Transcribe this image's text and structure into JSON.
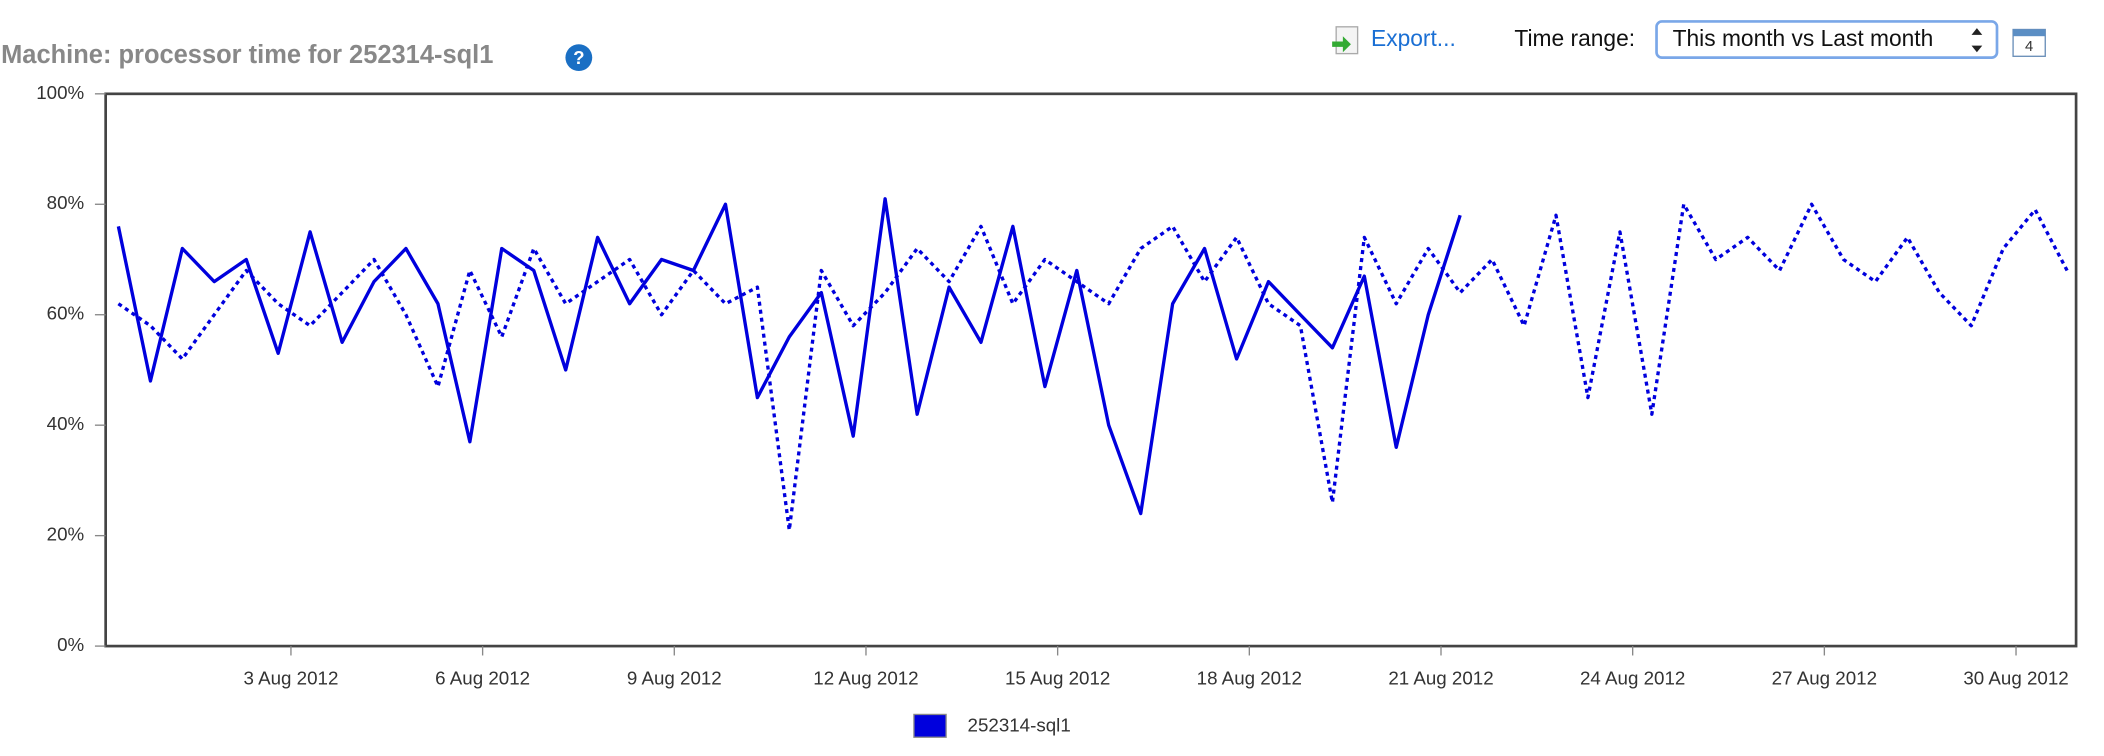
{
  "toolbar": {
    "export": "Export...",
    "time_range_label": "Time range:",
    "time_range_value": "This month vs Last month",
    "calendar_day": "4",
    "help": "?"
  },
  "chart_data": {
    "type": "line",
    "title": "Machine: processor time for 252314-sql1",
    "x": [
      0.3,
      0.8,
      1.3,
      1.8,
      2.3,
      2.8,
      3.3,
      3.8,
      4.3,
      4.8,
      5.3,
      5.8,
      6.3,
      6.8,
      7.3,
      7.8,
      8.3,
      8.8,
      9.3,
      9.8,
      10.3,
      10.8,
      11.3,
      11.8,
      12.3,
      12.8,
      13.3,
      13.8,
      14.3,
      14.8,
      15.3,
      15.8,
      16.3,
      16.8,
      17.3,
      17.8,
      18.3,
      18.8,
      19.3,
      19.8,
      20.3,
      20.8,
      21.3,
      21.8,
      22.3,
      22.8,
      23.3,
      23.8,
      24.3,
      24.8,
      25.3,
      25.8,
      26.3,
      26.8,
      27.3,
      27.8,
      28.3,
      28.8,
      29.3,
      29.8,
      30.3,
      30.8
    ],
    "series": [
      {
        "name": "252314-sql1",
        "color": "#0000dd",
        "dash": false,
        "values": [
          76,
          48,
          72,
          66,
          70,
          53,
          75,
          55,
          66,
          72,
          62,
          37,
          72,
          68,
          50,
          74,
          62,
          70,
          68,
          80,
          45,
          56,
          64,
          38,
          81,
          42,
          65,
          55,
          76,
          47,
          68,
          40,
          24,
          62,
          72,
          52,
          66,
          60,
          54,
          67,
          36,
          60,
          78,
          null,
          null,
          null,
          null,
          null,
          null,
          null,
          null,
          null,
          null,
          null,
          null,
          null,
          null,
          null,
          null,
          null,
          null,
          null
        ]
      },
      {
        "color": "#0000dd",
        "dash": true,
        "values": [
          62,
          58,
          52,
          60,
          68,
          62,
          58,
          64,
          70,
          60,
          47,
          68,
          56,
          72,
          62,
          66,
          70,
          60,
          68,
          62,
          65,
          21,
          68,
          58,
          64,
          72,
          66,
          76,
          62,
          70,
          66,
          62,
          72,
          76,
          66,
          74,
          62,
          58,
          26,
          74,
          62,
          72,
          64,
          70,
          58,
          78,
          45,
          75,
          42,
          80,
          70,
          74,
          68,
          80,
          70,
          66,
          74,
          64,
          58,
          72,
          79,
          68
        ]
      }
    ],
    "xlim": [
      0.1,
      30.94
    ],
    "xticks": [
      {
        "value": 3,
        "label": "3 Aug 2012"
      },
      {
        "value": 6,
        "label": "6 Aug 2012"
      },
      {
        "value": 9,
        "label": "9 Aug 2012"
      },
      {
        "value": 12,
        "label": "12 Aug 2012"
      },
      {
        "value": 15,
        "label": "15 Aug 2012"
      },
      {
        "value": 18,
        "label": "18 Aug 2012"
      },
      {
        "value": 21,
        "label": "21 Aug 2012"
      },
      {
        "value": 24,
        "label": "24 Aug 2012"
      },
      {
        "value": 27,
        "label": "27 Aug 2012"
      },
      {
        "value": 30,
        "label": "30 Aug 2012"
      }
    ],
    "ylim": [
      0,
      100
    ],
    "yticks": [
      {
        "value": 0,
        "label": "0%"
      },
      {
        "value": 20,
        "label": "20%"
      },
      {
        "value": 40,
        "label": "40%"
      },
      {
        "value": 60,
        "label": "60%"
      },
      {
        "value": 80,
        "label": "80%"
      },
      {
        "value": 100,
        "label": "100%"
      }
    ]
  }
}
